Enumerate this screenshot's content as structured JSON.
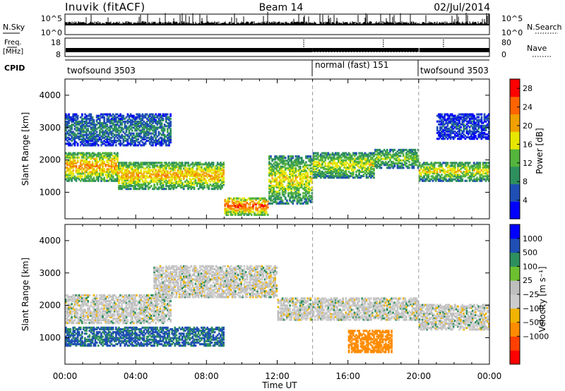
{
  "header": {
    "station": "Inuvik (fitACF)",
    "beam": "Beam 14",
    "date": "02/Jul/2014"
  },
  "noise_panel": {
    "left_label": "N.Sky",
    "right_label": "N.Search",
    "left_ticks": [
      "10^5",
      "10^0"
    ],
    "right_ticks": [
      "10^5",
      "10^0"
    ]
  },
  "freq_panel": {
    "left_label_1": "Freq.",
    "left_label_2": "[MHz]",
    "right_label": "Nave",
    "left_ticks": [
      "18",
      "8"
    ],
    "right_ticks": [
      "80",
      "0"
    ]
  },
  "cpid": {
    "label": "CPID",
    "segments": [
      {
        "name": "twofsound 3503",
        "start": 0.0
      },
      {
        "name": "normal (fast) 151",
        "start": 14.0
      },
      {
        "name": "twofsound 3503",
        "start": 20.0
      }
    ]
  },
  "colors": {
    "power": [
      "#0000ff",
      "#1f4fb4",
      "#2e8f5e",
      "#54b43c",
      "#e6e600",
      "#f0a000",
      "#ff6400",
      "#ff0000"
    ],
    "velocity": [
      "#ff0000",
      "#ff4000",
      "#ff8c00",
      "#f0b400",
      "#cccccc",
      "#bebebe",
      "#6cc030",
      "#2e8f5e",
      "#1f4fb4",
      "#0000ff"
    ]
  },
  "chart_data": [
    {
      "type": "heatmap",
      "title": "",
      "xlabel": "",
      "ylabel": "Slant Range [km]",
      "xlim": [
        0,
        24
      ],
      "ylim": [
        180,
        4500
      ],
      "x_ticks": [
        "00:00",
        "04:00",
        "08:00",
        "12:00",
        "16:00",
        "20:00",
        "00:00"
      ],
      "y_ticks": [
        1000,
        2000,
        3000,
        4000
      ],
      "colorbar": {
        "label": "Power [dB]",
        "ticks": [
          "28",
          "24",
          "20",
          "16",
          "12",
          "8",
          "4"
        ],
        "range": [
          0,
          30
        ]
      },
      "echo_regions": [
        {
          "t0": 0.0,
          "t1": 3.0,
          "r0": 1300,
          "r1": 2200,
          "level": 22
        },
        {
          "t0": 3.0,
          "t1": 9.0,
          "r0": 1050,
          "r1": 1900,
          "level": 21
        },
        {
          "t0": 9.0,
          "t1": 11.5,
          "r0": 250,
          "r1": 800,
          "level": 26
        },
        {
          "t0": 11.5,
          "t1": 14.0,
          "r0": 600,
          "r1": 2100,
          "level": 18
        },
        {
          "t0": 14.0,
          "t1": 17.5,
          "r0": 1400,
          "r1": 2200,
          "level": 17
        },
        {
          "t0": 17.5,
          "t1": 20.0,
          "r0": 1700,
          "r1": 2300,
          "level": 15
        },
        {
          "t0": 20.0,
          "t1": 24.0,
          "r0": 1300,
          "r1": 1900,
          "level": 18
        },
        {
          "t0": 0.0,
          "t1": 6.0,
          "r0": 2400,
          "r1": 3400,
          "level": 9
        },
        {
          "t0": 21.0,
          "t1": 24.0,
          "r0": 2600,
          "r1": 3400,
          "level": 6
        }
      ]
    },
    {
      "type": "heatmap",
      "title": "",
      "xlabel": "Time UT",
      "ylabel": "Slant Range [km]",
      "xlim": [
        0,
        24
      ],
      "ylim": [
        180,
        4500
      ],
      "x_ticks": [
        "00:00",
        "04:00",
        "08:00",
        "12:00",
        "16:00",
        "20:00",
        "00:00"
      ],
      "y_ticks": [
        1000,
        2000,
        3000,
        4000
      ],
      "colorbar": {
        "label": "Velocity [m s⁻¹]",
        "ticks": [
          "1000",
          "500",
          "100",
          "25",
          "−25",
          "−100",
          "−500",
          "−1000"
        ]
      },
      "echo_regions": [
        {
          "t0": 0.0,
          "t1": 6.0,
          "r0": 1400,
          "r1": 2300,
          "level": 0
        },
        {
          "t0": 0.0,
          "t1": 9.0,
          "r0": 700,
          "r1": 1300,
          "level": 150
        },
        {
          "t0": 5.0,
          "t1": 12.0,
          "r0": 2200,
          "r1": 3200,
          "level": 0
        },
        {
          "t0": 12.0,
          "t1": 20.0,
          "r0": 1500,
          "r1": 2200,
          "level": 0
        },
        {
          "t0": 16.0,
          "t1": 18.5,
          "r0": 500,
          "r1": 1200,
          "level": -150
        },
        {
          "t0": 20.0,
          "t1": 24.0,
          "r0": 1200,
          "r1": 2000,
          "level": 0
        }
      ]
    }
  ]
}
